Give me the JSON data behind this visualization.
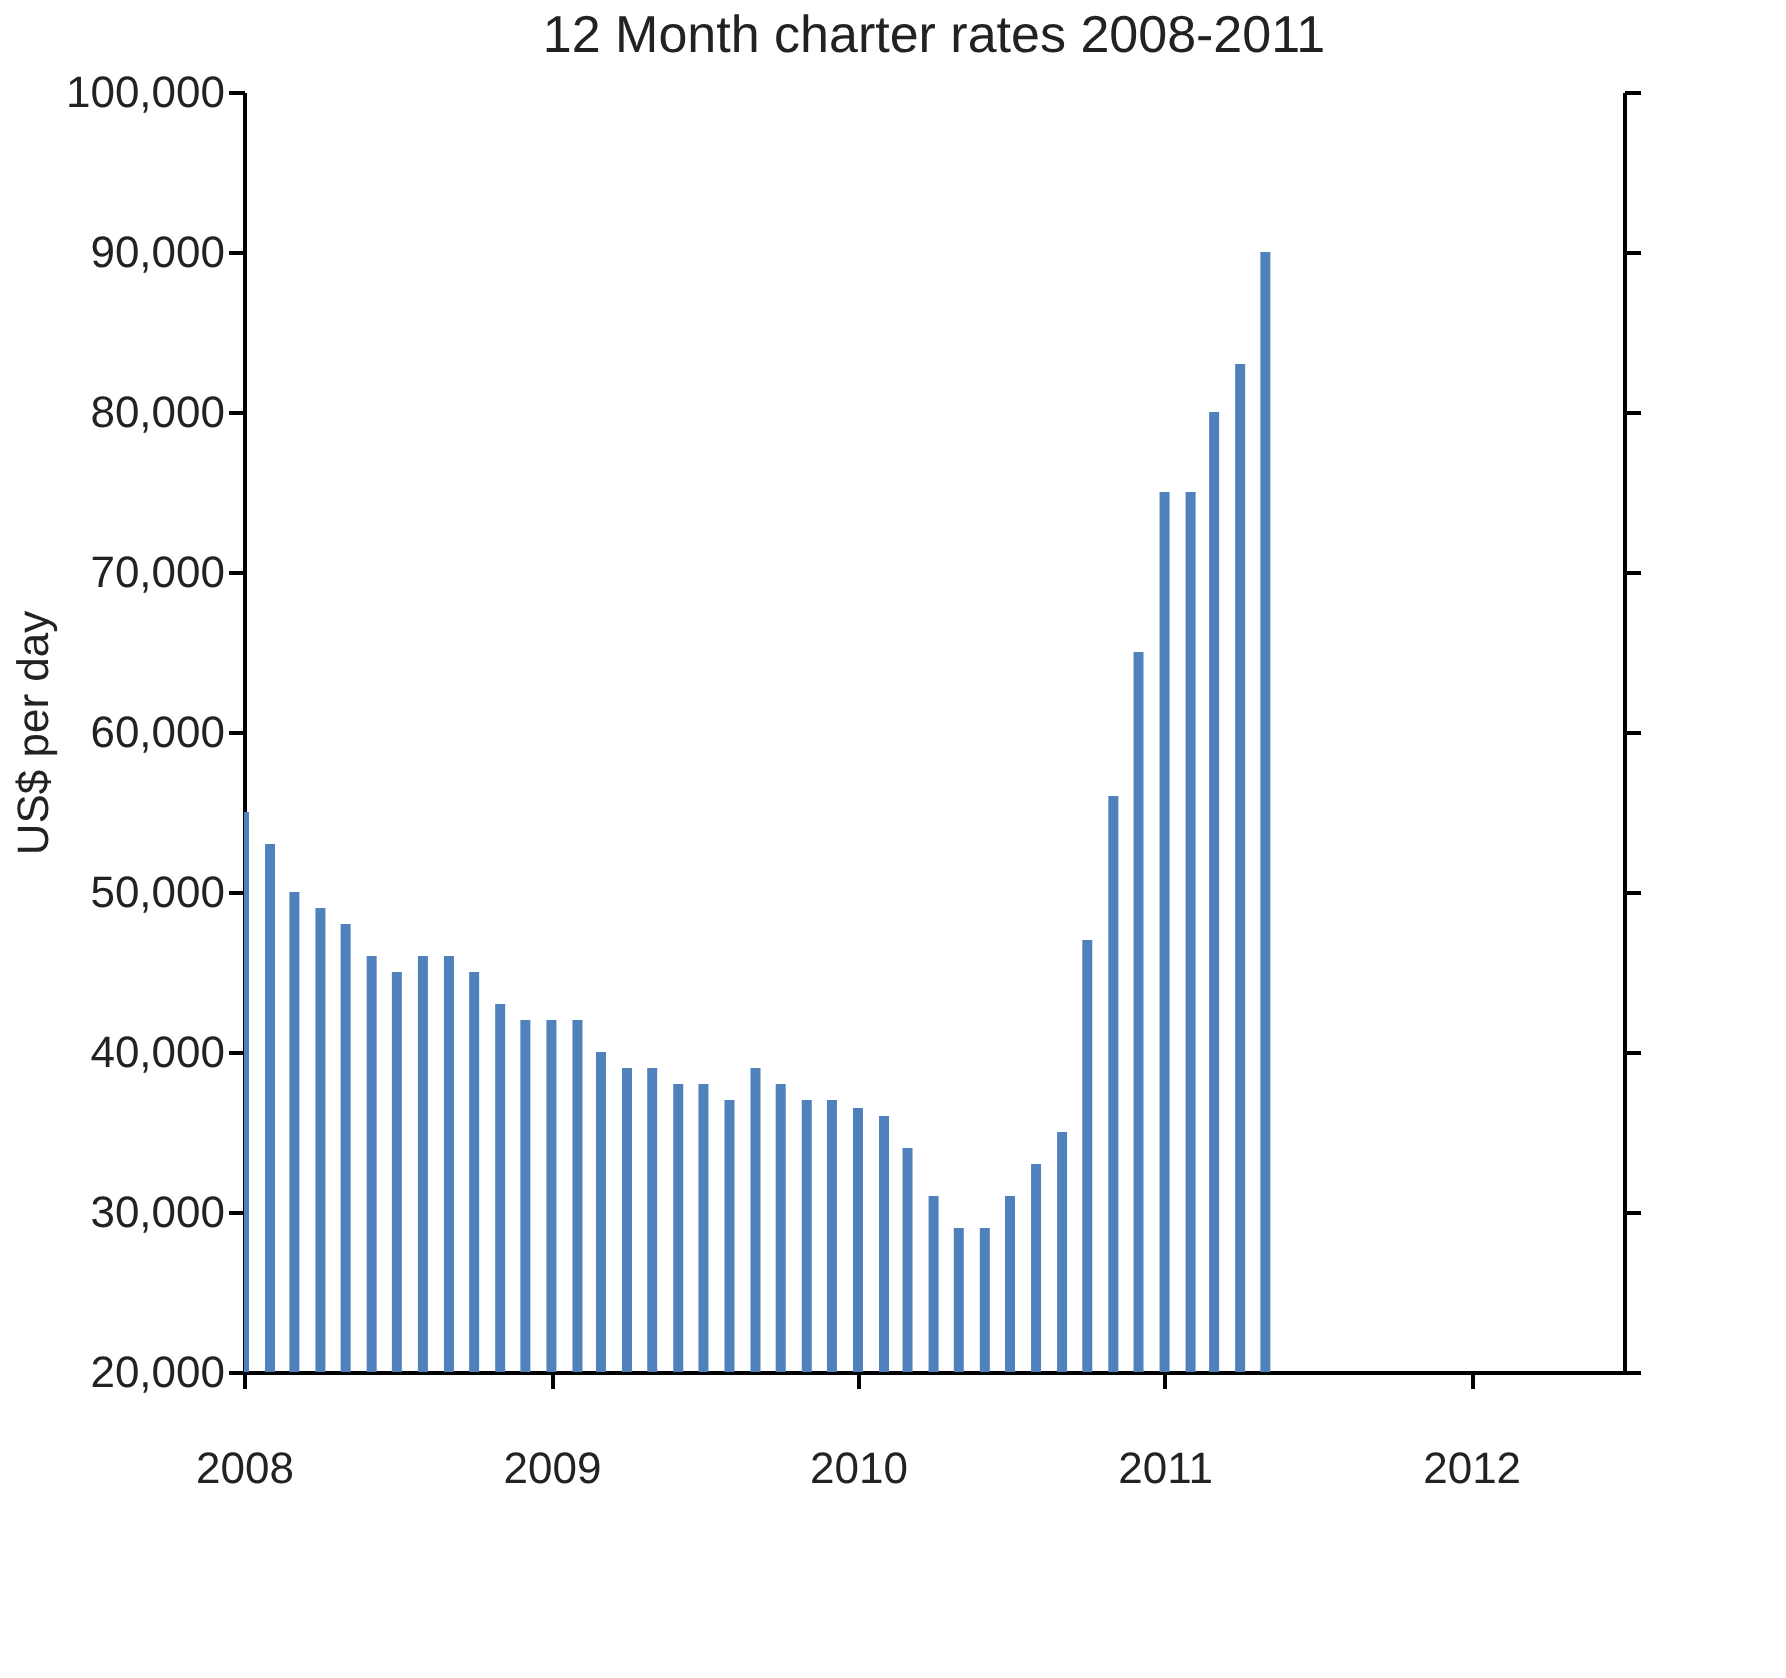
{
  "chart_data": {
    "type": "bar",
    "title": "12 Month charter rates 2008-2011",
    "ylabel": "US$ per day",
    "x": [
      "2008-01",
      "2008-02",
      "2008-03",
      "2008-04",
      "2008-05",
      "2008-06",
      "2008-07",
      "2008-08",
      "2008-09",
      "2008-10",
      "2008-11",
      "2008-12",
      "2009-01",
      "2009-02",
      "2009-03",
      "2009-04",
      "2009-05",
      "2009-06",
      "2009-07",
      "2009-08",
      "2009-09",
      "2009-10",
      "2009-11",
      "2009-12",
      "2010-01",
      "2010-02",
      "2010-03",
      "2010-04",
      "2010-05",
      "2010-06",
      "2010-07",
      "2010-08",
      "2010-09",
      "2010-10",
      "2010-11",
      "2010-12",
      "2011-01",
      "2011-02",
      "2011-03",
      "2011-04",
      "2011-05"
    ],
    "values": [
      55000,
      53000,
      50000,
      49000,
      48000,
      46000,
      45000,
      46000,
      46000,
      45000,
      43000,
      42000,
      42000,
      42000,
      40000,
      39000,
      39000,
      38000,
      38000,
      37000,
      39000,
      38000,
      37000,
      37000,
      36500,
      36000,
      34000,
      31000,
      29000,
      29000,
      31000,
      33000,
      35000,
      47000,
      56000,
      65000,
      75000,
      75000,
      80000,
      83000,
      90000
    ],
    "color": "#4f81bd",
    "xlim": [
      "2008-01",
      "2012-07"
    ],
    "xticks": [
      "2008",
      "2009",
      "2010",
      "2011",
      "2012"
    ],
    "ylim": [
      20000,
      100000
    ],
    "yticks": [
      {
        "value": 20000,
        "label": "20,000"
      },
      {
        "value": 30000,
        "label": "30,000"
      },
      {
        "value": 40000,
        "label": "40,000"
      },
      {
        "value": 50000,
        "label": "50,000"
      },
      {
        "value": 60000,
        "label": "60,000"
      },
      {
        "value": 70000,
        "label": "70,000"
      },
      {
        "value": 80000,
        "label": "80,000"
      },
      {
        "value": 90000,
        "label": "90,000"
      },
      {
        "value": 100000,
        "label": "100,000"
      }
    ],
    "grid": false
  }
}
